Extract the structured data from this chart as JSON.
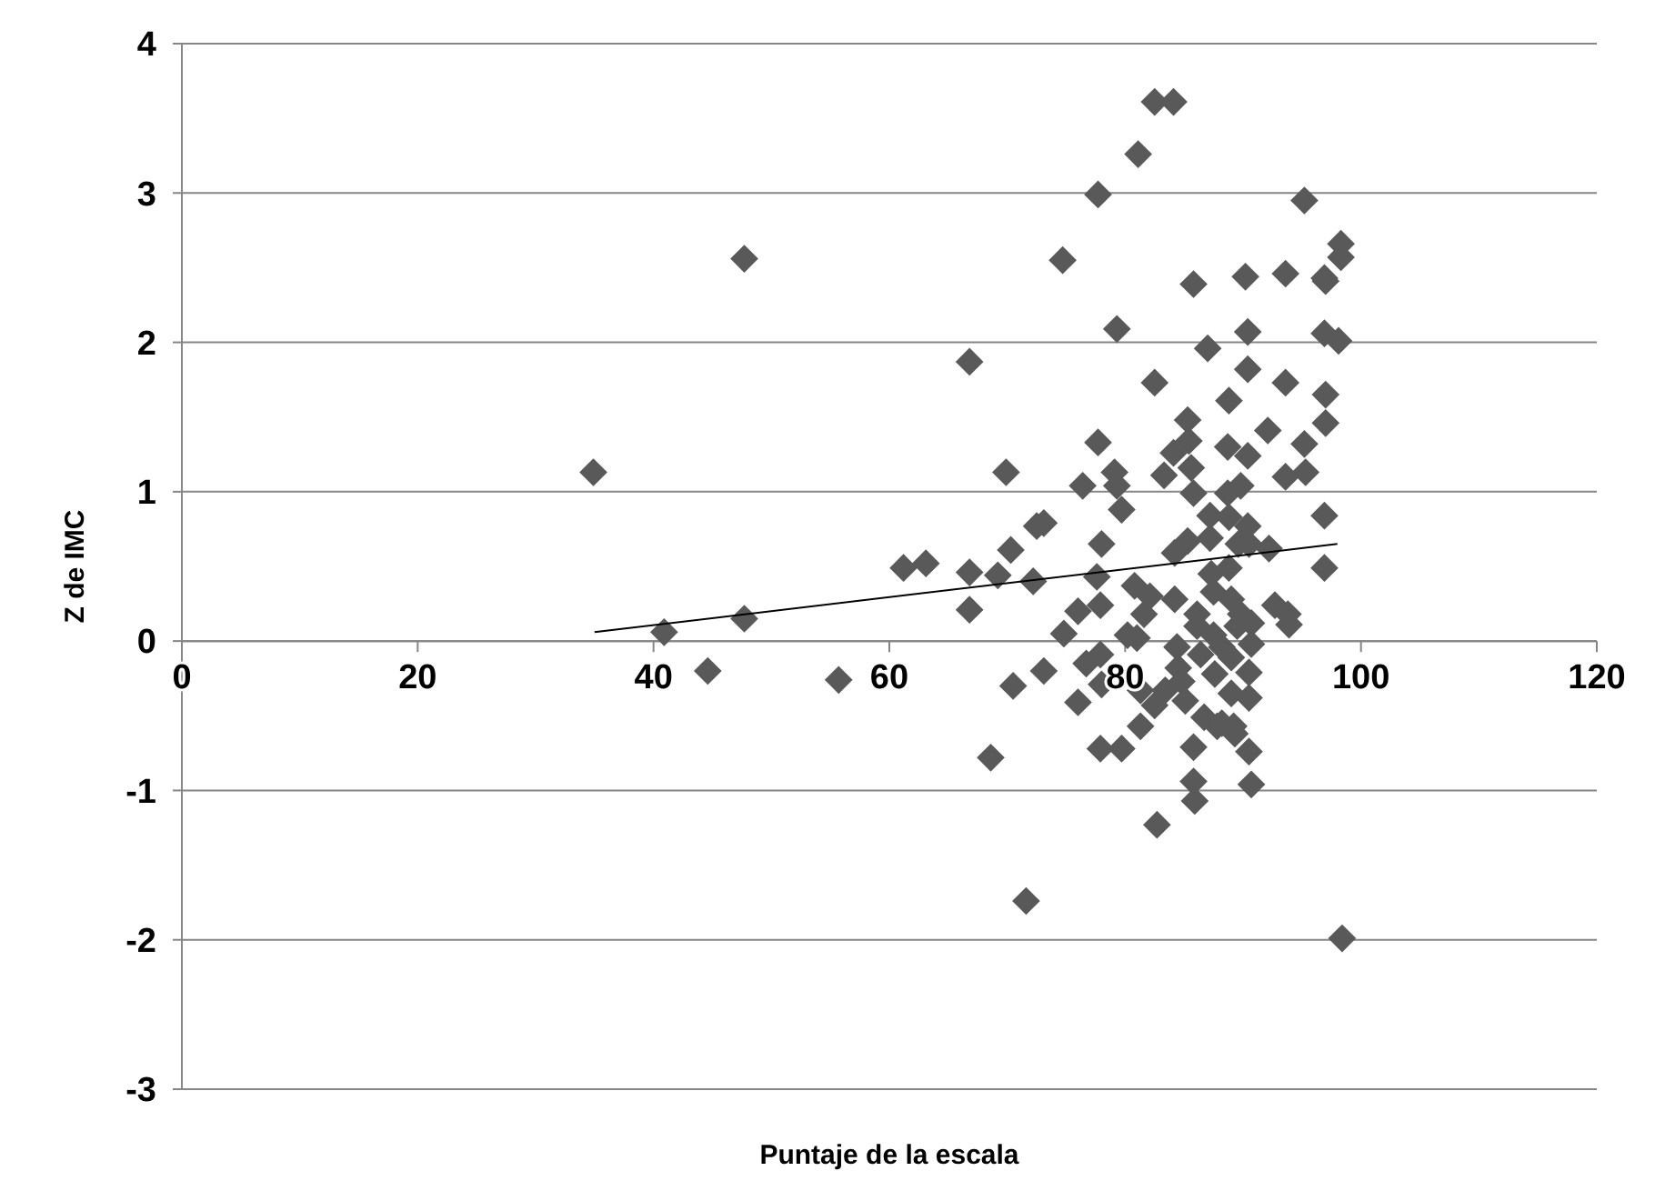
{
  "chart_data": {
    "type": "scatter",
    "xlabel": "Puntaje de la escala",
    "ylabel": "Z de IMC",
    "xlim": [
      0,
      120
    ],
    "xticks": [
      0,
      20,
      40,
      60,
      80,
      100,
      120
    ],
    "ylim": [
      -3,
      4
    ],
    "yticks": [
      -3,
      -2,
      -1,
      0,
      1,
      2,
      3,
      4
    ],
    "grid": "y",
    "marker": "diamond",
    "series": [
      {
        "color": "#595959",
        "x": [
          34.9,
          40.9,
          44.6,
          47.7,
          47.7,
          55.7,
          61.2,
          63.1,
          66.8,
          66.8,
          66.8,
          68.6,
          69.9,
          69.2,
          70.3,
          70.5,
          71.6,
          72.2,
          72.5,
          73.1,
          73.1,
          74.7,
          74.8,
          76.0,
          76.0,
          76.4,
          76.7,
          77.7,
          77.7,
          77.6,
          77.9,
          77.9,
          77.9,
          78.0,
          79.3,
          79.1,
          79.3,
          79.7,
          79.7,
          81.1,
          80.8,
          81.0,
          81.3,
          81.3,
          82.5,
          82.5,
          82.7,
          82.5,
          83.3,
          84.1,
          84.2,
          84.1,
          84.2,
          84.4,
          84.5,
          84.8,
          85.1,
          85.3,
          85.4,
          85.6,
          85.8,
          85.8,
          85.8,
          85.8,
          85.9,
          86.1,
          86.1,
          86.4,
          86.7,
          87.0,
          87.2,
          87.2,
          87.3,
          87.5,
          87.5,
          87.6,
          87.8,
          88.2,
          88.7,
          88.7,
          88.8,
          88.8,
          88.8,
          89.0,
          89.0,
          89.0,
          89.2,
          89.3,
          89.5,
          89.6,
          89.8,
          89.8,
          90.2,
          90.4,
          90.4,
          90.4,
          90.4,
          90.5,
          90.5,
          90.5,
          90.5,
          90.7,
          90.7,
          90.7,
          92.1,
          92.2,
          92.7,
          93.6,
          93.6,
          93.6,
          93.8,
          93.9,
          95.2,
          95.2,
          95.3,
          96.9,
          96.9,
          97.0,
          97.0,
          96.9,
          96.9,
          98.3,
          98.3,
          98.1,
          98.4,
          97.0,
          85.3,
          82.1,
          81.6,
          88.2,
          83.4,
          80.2,
          78.0
        ],
        "values": [
          1.13,
          0.06,
          -0.2,
          0.15,
          2.56,
          -0.26,
          0.49,
          0.52,
          1.87,
          0.21,
          0.46,
          -0.78,
          1.13,
          0.44,
          0.61,
          -0.3,
          -1.74,
          0.4,
          0.77,
          0.79,
          -0.2,
          2.55,
          0.05,
          0.2,
          -0.41,
          1.04,
          -0.15,
          2.99,
          1.33,
          0.43,
          0.24,
          -0.09,
          -0.72,
          -0.29,
          2.09,
          1.13,
          1.04,
          0.88,
          -0.72,
          3.26,
          0.37,
          0.02,
          -0.33,
          -0.57,
          1.73,
          3.61,
          -1.23,
          -0.43,
          1.11,
          3.61,
          0.59,
          1.26,
          0.28,
          -0.04,
          -0.18,
          -0.27,
          -0.4,
          1.48,
          1.34,
          1.16,
          0.99,
          2.39,
          -0.71,
          -0.94,
          -1.07,
          0.18,
          0.1,
          -0.09,
          -0.51,
          1.96,
          0.69,
          0.84,
          0.45,
          0.33,
          0.04,
          -0.22,
          -0.57,
          -0.04,
          1.3,
          0.99,
          1.61,
          0.83,
          0.49,
          0.28,
          -0.11,
          -0.35,
          -0.57,
          -0.62,
          0.1,
          0.65,
          0.18,
          1.04,
          2.44,
          2.07,
          1.82,
          1.24,
          0.77,
          0.65,
          -0.21,
          -0.38,
          -0.74,
          -0.96,
          -0.02,
          0.12,
          1.41,
          0.62,
          0.24,
          2.46,
          1.73,
          1.1,
          0.18,
          0.11,
          2.95,
          1.32,
          1.13,
          2.43,
          2.06,
          1.65,
          1.46,
          0.84,
          0.49,
          2.66,
          2.57,
          2.01,
          -1.99,
          2.41,
          0.67,
          0.3,
          0.18,
          -0.55,
          -0.33,
          0.04,
          0.65
        ]
      },
      {
        "type": "line",
        "color": "#000000",
        "marker": "none",
        "x": [
          35,
          98
        ],
        "values": [
          0.06,
          0.65
        ]
      }
    ]
  }
}
